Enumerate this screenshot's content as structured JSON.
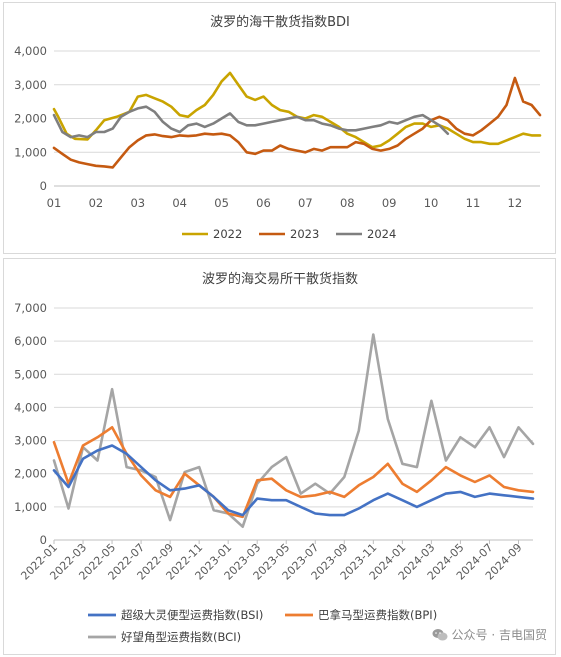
{
  "chart_data": [
    {
      "type": "line",
      "title": "波罗的海干散货指数BDI",
      "xlabel": "",
      "ylabel": "",
      "ylim": [
        0,
        4000
      ],
      "y_ticks": [
        "0",
        "1,000",
        "2,000",
        "3,000",
        "4,000"
      ],
      "x_ticks": [
        "01",
        "02",
        "03",
        "04",
        "05",
        "06",
        "07",
        "08",
        "09",
        "10",
        "11",
        "12"
      ],
      "x_range": [
        1,
        12.6
      ],
      "grid": "horizontal",
      "legend_position": "bottom",
      "colors": {
        "2022": "#c9a400",
        "2023": "#c55a11",
        "2024": "#7f7f7f",
        "grid": "#d9d9d9",
        "axis_text": "#595959"
      },
      "series": [
        {
          "name": "2022",
          "x": [
            1,
            1.1,
            1.3,
            1.5,
            1.8,
            2.0,
            2.2,
            2.5,
            2.8,
            3.0,
            3.2,
            3.4,
            3.6,
            3.8,
            4.0,
            4.2,
            4.4,
            4.6,
            4.8,
            5.0,
            5.2,
            5.4,
            5.6,
            5.8,
            6.0,
            6.2,
            6.4,
            6.6,
            6.8,
            7.0,
            7.2,
            7.4,
            7.6,
            7.8,
            8.0,
            8.2,
            8.4,
            8.6,
            8.8,
            9.0,
            9.2,
            9.4,
            9.6,
            9.8,
            10.0,
            10.2,
            10.4,
            10.6,
            10.8,
            11.0,
            11.2,
            11.4,
            11.6,
            11.8,
            12.0,
            12.2,
            12.4,
            12.6
          ],
          "values": [
            2280,
            2050,
            1550,
            1400,
            1380,
            1650,
            1950,
            2050,
            2200,
            2650,
            2700,
            2600,
            2500,
            2350,
            2100,
            2050,
            2250,
            2400,
            2700,
            3100,
            3350,
            3000,
            2650,
            2550,
            2650,
            2400,
            2250,
            2200,
            2050,
            2000,
            2100,
            2050,
            1900,
            1750,
            1550,
            1450,
            1300,
            1150,
            1200,
            1350,
            1550,
            1750,
            1850,
            1850,
            1750,
            1800,
            1700,
            1550,
            1400,
            1300,
            1300,
            1250,
            1250,
            1350,
            1450,
            1550,
            1500,
            1500
          ]
        },
        {
          "name": "2023",
          "x": [
            1,
            1.2,
            1.4,
            1.6,
            1.8,
            2.0,
            2.2,
            2.4,
            2.6,
            2.8,
            3.0,
            3.2,
            3.4,
            3.6,
            3.8,
            4.0,
            4.2,
            4.4,
            4.6,
            4.8,
            5.0,
            5.2,
            5.4,
            5.6,
            5.8,
            6.0,
            6.2,
            6.4,
            6.6,
            6.8,
            7.0,
            7.2,
            7.4,
            7.6,
            7.8,
            8.0,
            8.2,
            8.4,
            8.6,
            8.8,
            9.0,
            9.2,
            9.4,
            9.6,
            9.8,
            10.0,
            10.2,
            10.4,
            10.6,
            10.8,
            11.0,
            11.2,
            11.4,
            11.6,
            11.8,
            12.0,
            12.2,
            12.4,
            12.6
          ],
          "values": [
            1130,
            950,
            780,
            700,
            650,
            600,
            580,
            550,
            850,
            1150,
            1350,
            1500,
            1530,
            1480,
            1450,
            1500,
            1480,
            1500,
            1550,
            1530,
            1550,
            1500,
            1300,
            1000,
            950,
            1050,
            1050,
            1200,
            1100,
            1050,
            1000,
            1100,
            1050,
            1150,
            1150,
            1150,
            1300,
            1250,
            1100,
            1050,
            1100,
            1200,
            1400,
            1550,
            1700,
            1950,
            2050,
            1950,
            1700,
            1550,
            1500,
            1650,
            1850,
            2050,
            2400,
            3200,
            2500,
            2400,
            2100
          ]
        },
        {
          "name": "2024",
          "x": [
            1,
            1.2,
            1.4,
            1.6,
            1.8,
            2.0,
            2.2,
            2.4,
            2.6,
            2.8,
            3.0,
            3.2,
            3.4,
            3.6,
            3.8,
            4.0,
            4.2,
            4.4,
            4.6,
            4.8,
            5.0,
            5.2,
            5.4,
            5.6,
            5.8,
            6.0,
            6.2,
            6.4,
            6.6,
            6.8,
            7.0,
            7.2,
            7.4,
            7.6,
            7.8,
            8.0,
            8.2,
            8.4,
            8.6,
            8.8,
            9.0,
            9.2,
            9.4,
            9.6,
            9.8,
            10.0,
            10.2,
            10.4
          ],
          "values": [
            2100,
            1600,
            1450,
            1500,
            1450,
            1600,
            1600,
            1700,
            2050,
            2200,
            2300,
            2350,
            2200,
            1900,
            1700,
            1600,
            1800,
            1850,
            1750,
            1850,
            2000,
            2150,
            1900,
            1800,
            1800,
            1850,
            1900,
            1950,
            2000,
            2050,
            1950,
            1950,
            1850,
            1800,
            1700,
            1650,
            1650,
            1700,
            1750,
            1800,
            1900,
            1850,
            1950,
            2050,
            2100,
            1950,
            1800,
            1550
          ]
        }
      ]
    },
    {
      "type": "line",
      "title": "波罗的海交易所干散货指数",
      "xlabel": "",
      "ylabel": "",
      "ylim": [
        0,
        7000
      ],
      "y_ticks": [
        "0",
        "1,000",
        "2,000",
        "3,000",
        "4,000",
        "5,000",
        "6,000",
        "7,000"
      ],
      "x_ticks": [
        "2022-01",
        "2022-03",
        "2022-05",
        "2022-07",
        "2022-09",
        "2022-11",
        "2023-01",
        "2023-03",
        "2023-05",
        "2023-07",
        "2023-09",
        "2023-11",
        "2024-01",
        "2024-03",
        "2024-05",
        "2024-07",
        "2024-09"
      ],
      "x_range": [
        "2022-01",
        "2024-10"
      ],
      "grid": "horizontal",
      "legend_position": "bottom",
      "colors": {
        "BSI": "#4472c4",
        "BPI": "#ed7d31",
        "BCI": "#a5a5a5",
        "grid": "#d9d9d9",
        "axis_text": "#595959"
      },
      "x": [
        "2022-01",
        "2022-02",
        "2022-03",
        "2022-04",
        "2022-05",
        "2022-06",
        "2022-07",
        "2022-08",
        "2022-09",
        "2022-10",
        "2022-11",
        "2022-12",
        "2023-01",
        "2023-02",
        "2023-03",
        "2023-04",
        "2023-05",
        "2023-06",
        "2023-07",
        "2023-08",
        "2023-09",
        "2023-10",
        "2023-11",
        "2023-12",
        "2024-01",
        "2024-02",
        "2024-03",
        "2024-04",
        "2024-05",
        "2024-06",
        "2024-07",
        "2024-08",
        "2024-09",
        "2024-10"
      ],
      "series": [
        {
          "name": "超级大灵便型运费指数(BSI)",
          "values": [
            2100,
            1600,
            2450,
            2700,
            2850,
            2600,
            2200,
            1800,
            1500,
            1550,
            1650,
            1300,
            900,
            750,
            1250,
            1200,
            1200,
            1000,
            800,
            750,
            750,
            950,
            1200,
            1400,
            1200,
            1000,
            1200,
            1400,
            1450,
            1300,
            1400,
            1350,
            1300,
            1250
          ]
        },
        {
          "name": "巴拿马型运费指数(BPI)",
          "values": [
            2950,
            1700,
            2850,
            3100,
            3400,
            2600,
            1950,
            1500,
            1300,
            2000,
            1650,
            1300,
            800,
            700,
            1800,
            1850,
            1500,
            1300,
            1350,
            1450,
            1300,
            1650,
            1900,
            2300,
            1700,
            1450,
            1800,
            2200,
            1950,
            1750,
            1950,
            1600,
            1500,
            1450
          ]
        },
        {
          "name": "好望角型运费指数(BCI)",
          "values": [
            2400,
            950,
            2800,
            2400,
            4550,
            2200,
            2100,
            1900,
            600,
            2050,
            2200,
            900,
            800,
            400,
            1700,
            2200,
            2500,
            1400,
            1700,
            1400,
            1900,
            3300,
            6200,
            3650,
            2300,
            2200,
            4200,
            2400,
            3100,
            2800,
            3400,
            2500,
            3400,
            2900
          ]
        }
      ]
    }
  ],
  "watermark": {
    "text": "公众号 · 吉电国贸",
    "icon": "wechat-icon"
  }
}
